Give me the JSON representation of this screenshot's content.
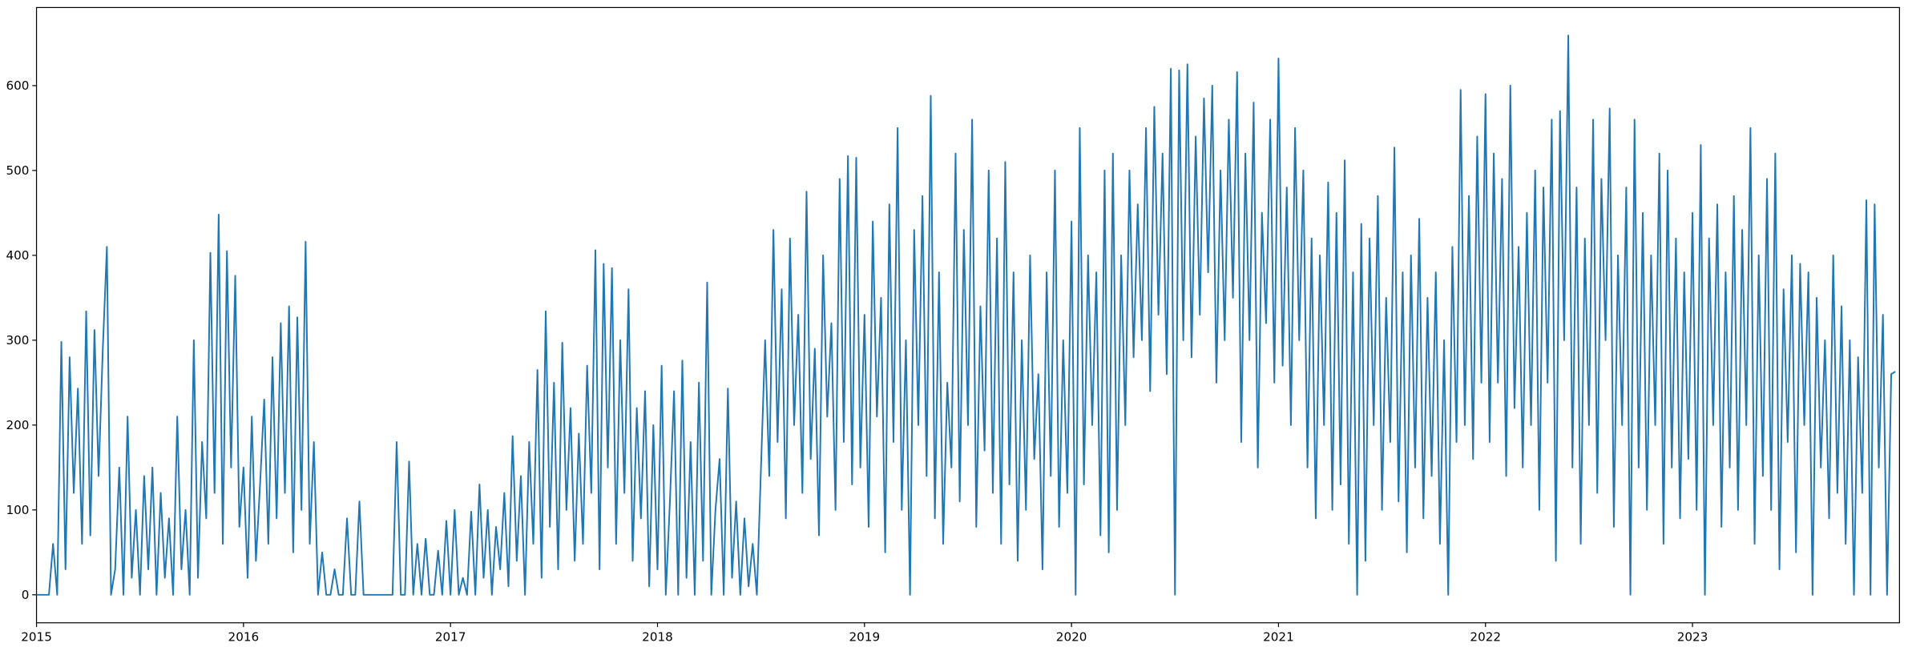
{
  "chart_data": {
    "type": "line",
    "color": "#1f77b4",
    "xlim": [
      2015,
      2024
    ],
    "xticks": [
      2015,
      2016,
      2017,
      2018,
      2019,
      2020,
      2021,
      2022,
      2023
    ],
    "ylim": [
      -33,
      692
    ],
    "yticks": [
      0,
      100,
      200,
      300,
      400,
      500,
      600
    ],
    "x": [
      2015.0,
      2015.02,
      2015.04,
      2015.06,
      2015.08,
      2015.1,
      2015.12,
      2015.14,
      2015.16,
      2015.18,
      2015.2,
      2015.22,
      2015.24,
      2015.26,
      2015.28,
      2015.3,
      2015.32,
      2015.34,
      2015.36,
      2015.38,
      2015.4,
      2015.42,
      2015.44,
      2015.46,
      2015.48,
      2015.5,
      2015.52,
      2015.54,
      2015.56,
      2015.58,
      2015.6,
      2015.62,
      2015.64,
      2015.66,
      2015.68,
      2015.7,
      2015.72,
      2015.74,
      2015.76,
      2015.78,
      2015.8,
      2015.82,
      2015.84,
      2015.86,
      2015.88,
      2015.9,
      2015.92,
      2015.94,
      2015.96,
      2015.98,
      2016.0,
      2016.02,
      2016.04,
      2016.06,
      2016.08,
      2016.1,
      2016.12,
      2016.14,
      2016.16,
      2016.18,
      2016.2,
      2016.22,
      2016.24,
      2016.26,
      2016.28,
      2016.3,
      2016.32,
      2016.34,
      2016.36,
      2016.38,
      2016.4,
      2016.42,
      2016.44,
      2016.46,
      2016.48,
      2016.5,
      2016.52,
      2016.54,
      2016.56,
      2016.58,
      2016.6,
      2016.62,
      2016.64,
      2016.66,
      2016.68,
      2016.7,
      2016.72,
      2016.74,
      2016.76,
      2016.78,
      2016.8,
      2016.82,
      2016.84,
      2016.86,
      2016.88,
      2016.9,
      2016.92,
      2016.94,
      2016.96,
      2016.98,
      2017.0,
      2017.02,
      2017.04,
      2017.06,
      2017.08,
      2017.1,
      2017.12,
      2017.14,
      2017.16,
      2017.18,
      2017.2,
      2017.22,
      2017.24,
      2017.26,
      2017.28,
      2017.3,
      2017.32,
      2017.34,
      2017.36,
      2017.38,
      2017.4,
      2017.42,
      2017.44,
      2017.46,
      2017.48,
      2017.5,
      2017.52,
      2017.54,
      2017.56,
      2017.58,
      2017.6,
      2017.62,
      2017.64,
      2017.66,
      2017.68,
      2017.7,
      2017.72,
      2017.74,
      2017.76,
      2017.78,
      2017.8,
      2017.82,
      2017.84,
      2017.86,
      2017.88,
      2017.9,
      2017.92,
      2017.94,
      2017.96,
      2017.98,
      2018.0,
      2018.02,
      2018.04,
      2018.06,
      2018.08,
      2018.1,
      2018.12,
      2018.14,
      2018.16,
      2018.18,
      2018.2,
      2018.22,
      2018.24,
      2018.26,
      2018.28,
      2018.3,
      2018.32,
      2018.34,
      2018.36,
      2018.38,
      2018.4,
      2018.42,
      2018.44,
      2018.46,
      2018.48,
      2018.5,
      2018.52,
      2018.54,
      2018.56,
      2018.58,
      2018.6,
      2018.62,
      2018.64,
      2018.66,
      2018.68,
      2018.7,
      2018.72,
      2018.74,
      2018.76,
      2018.78,
      2018.8,
      2018.82,
      2018.84,
      2018.86,
      2018.88,
      2018.9,
      2018.92,
      2018.94,
      2018.96,
      2018.98,
      2019.0,
      2019.02,
      2019.04,
      2019.06,
      2019.08,
      2019.1,
      2019.12,
      2019.14,
      2019.16,
      2019.18,
      2019.2,
      2019.22,
      2019.24,
      2019.26,
      2019.28,
      2019.3,
      2019.32,
      2019.34,
      2019.36,
      2019.38,
      2019.4,
      2019.42,
      2019.44,
      2019.46,
      2019.48,
      2019.5,
      2019.52,
      2019.54,
      2019.56,
      2019.58,
      2019.6,
      2019.62,
      2019.64,
      2019.66,
      2019.68,
      2019.7,
      2019.72,
      2019.74,
      2019.76,
      2019.78,
      2019.8,
      2019.82,
      2019.84,
      2019.86,
      2019.88,
      2019.9,
      2019.92,
      2019.94,
      2019.96,
      2019.98,
      2020.0,
      2020.02,
      2020.04,
      2020.06,
      2020.08,
      2020.1,
      2020.12,
      2020.14,
      2020.16,
      2020.18,
      2020.2,
      2020.22,
      2020.24,
      2020.26,
      2020.28,
      2020.3,
      2020.32,
      2020.34,
      2020.36,
      2020.38,
      2020.4,
      2020.42,
      2020.44,
      2020.46,
      2020.48,
      2020.5,
      2020.52,
      2020.54,
      2020.56,
      2020.58,
      2020.6,
      2020.62,
      2020.64,
      2020.66,
      2020.68,
      2020.7,
      2020.72,
      2020.74,
      2020.76,
      2020.78,
      2020.8,
      2020.82,
      2020.84,
      2020.86,
      2020.88,
      2020.9,
      2020.92,
      2020.94,
      2020.96,
      2020.98,
      2021.0,
      2021.02,
      2021.04,
      2021.06,
      2021.08,
      2021.1,
      2021.12,
      2021.14,
      2021.16,
      2021.18,
      2021.2,
      2021.22,
      2021.24,
      2021.26,
      2021.28,
      2021.3,
      2021.32,
      2021.34,
      2021.36,
      2021.38,
      2021.4,
      2021.42,
      2021.44,
      2021.46,
      2021.48,
      2021.5,
      2021.52,
      2021.54,
      2021.56,
      2021.58,
      2021.6,
      2021.62,
      2021.64,
      2021.66,
      2021.68,
      2021.7,
      2021.72,
      2021.74,
      2021.76,
      2021.78,
      2021.8,
      2021.82,
      2021.84,
      2021.86,
      2021.88,
      2021.9,
      2021.92,
      2021.94,
      2021.96,
      2021.98,
      2022.0,
      2022.02,
      2022.04,
      2022.06,
      2022.08,
      2022.1,
      2022.12,
      2022.14,
      2022.16,
      2022.18,
      2022.2,
      2022.22,
      2022.24,
      2022.26,
      2022.28,
      2022.3,
      2022.32,
      2022.34,
      2022.36,
      2022.38,
      2022.4,
      2022.42,
      2022.44,
      2022.46,
      2022.48,
      2022.5,
      2022.52,
      2022.54,
      2022.56,
      2022.58,
      2022.6,
      2022.62,
      2022.64,
      2022.66,
      2022.68,
      2022.7,
      2022.72,
      2022.74,
      2022.76,
      2022.78,
      2022.8,
      2022.82,
      2022.84,
      2022.86,
      2022.88,
      2022.9,
      2022.92,
      2022.94,
      2022.96,
      2022.98,
      2023.0,
      2023.02,
      2023.04,
      2023.06,
      2023.08,
      2023.1,
      2023.12,
      2023.14,
      2023.16,
      2023.18,
      2023.2,
      2023.22,
      2023.24,
      2023.26,
      2023.28,
      2023.3,
      2023.32,
      2023.34,
      2023.36,
      2023.38,
      2023.4,
      2023.42,
      2023.44,
      2023.46,
      2023.48,
      2023.5,
      2023.52,
      2023.54,
      2023.56,
      2023.58,
      2023.6,
      2023.62,
      2023.64,
      2023.66,
      2023.68,
      2023.7,
      2023.72,
      2023.74,
      2023.76,
      2023.78,
      2023.8,
      2023.82,
      2023.84,
      2023.86,
      2023.88,
      2023.9,
      2023.92,
      2023.94,
      2023.96,
      2023.98
    ],
    "values": [
      0,
      0,
      0,
      0,
      60,
      0,
      298,
      30,
      280,
      120,
      243,
      60,
      334,
      70,
      312,
      140,
      288,
      410,
      0,
      30,
      150,
      0,
      210,
      20,
      100,
      0,
      140,
      30,
      150,
      0,
      120,
      20,
      90,
      0,
      210,
      30,
      100,
      0,
      300,
      20,
      180,
      90,
      403,
      120,
      448,
      60,
      405,
      150,
      376,
      80,
      150,
      20,
      210,
      40,
      130,
      230,
      60,
      280,
      90,
      320,
      120,
      340,
      50,
      327,
      100,
      416,
      60,
      180,
      0,
      50,
      0,
      0,
      30,
      0,
      0,
      90,
      0,
      0,
      110,
      0,
      0,
      0,
      0,
      0,
      0,
      0,
      0,
      180,
      0,
      0,
      157,
      0,
      60,
      0,
      66,
      0,
      0,
      52,
      0,
      87,
      0,
      100,
      0,
      20,
      0,
      98,
      0,
      130,
      20,
      100,
      0,
      80,
      30,
      120,
      10,
      187,
      40,
      140,
      0,
      180,
      60,
      265,
      20,
      334,
      80,
      250,
      30,
      297,
      100,
      220,
      40,
      190,
      60,
      270,
      120,
      406,
      30,
      390,
      150,
      385,
      60,
      300,
      120,
      360,
      40,
      220,
      90,
      240,
      10,
      200,
      30,
      270,
      0,
      110,
      240,
      0,
      276,
      20,
      180,
      0,
      250,
      40,
      368,
      0,
      100,
      160,
      0,
      243,
      20,
      110,
      0,
      90,
      10,
      60,
      0,
      150,
      300,
      140,
      430,
      180,
      360,
      90,
      420,
      200,
      330,
      120,
      475,
      160,
      290,
      70,
      400,
      210,
      320,
      100,
      490,
      180,
      517,
      130,
      515,
      150,
      330,
      80,
      440,
      210,
      350,
      50,
      460,
      180,
      550,
      100,
      300,
      0,
      430,
      200,
      470,
      140,
      588,
      90,
      380,
      60,
      250,
      150,
      520,
      110,
      430,
      200,
      560,
      80,
      340,
      170,
      500,
      120,
      420,
      60,
      510,
      130,
      380,
      40,
      300,
      100,
      400,
      160,
      260,
      30,
      380,
      140,
      500,
      80,
      300,
      120,
      440,
      0,
      550,
      130,
      400,
      200,
      380,
      70,
      500,
      50,
      520,
      100,
      400,
      200,
      500,
      280,
      460,
      300,
      550,
      240,
      575,
      330,
      520,
      260,
      620,
      0,
      618,
      300,
      625,
      280,
      540,
      330,
      585,
      380,
      600,
      250,
      500,
      300,
      560,
      350,
      616,
      180,
      520,
      300,
      580,
      150,
      450,
      320,
      560,
      250,
      632,
      270,
      480,
      200,
      550,
      300,
      500,
      150,
      420,
      90,
      400,
      200,
      486,
      100,
      450,
      130,
      512,
      60,
      380,
      0,
      437,
      40,
      420,
      200,
      470,
      100,
      350,
      180,
      527,
      110,
      380,
      50,
      400,
      150,
      443,
      90,
      350,
      140,
      380,
      60,
      300,
      0,
      410,
      180,
      595,
      200,
      470,
      160,
      540,
      250,
      590,
      180,
      520,
      250,
      490,
      140,
      600,
      220,
      410,
      150,
      450,
      200,
      500,
      100,
      480,
      250,
      560,
      40,
      570,
      300,
      659,
      150,
      480,
      60,
      420,
      200,
      560,
      120,
      490,
      300,
      573,
      80,
      400,
      200,
      480,
      0,
      560,
      150,
      450,
      100,
      400,
      200,
      520,
      60,
      500,
      150,
      420,
      90,
      380,
      160,
      450,
      100,
      530,
      0,
      420,
      200,
      460,
      80,
      380,
      150,
      470,
      100,
      430,
      200,
      550,
      60,
      400,
      140,
      490,
      100,
      520,
      30,
      360,
      180,
      400,
      50,
      390,
      200,
      380,
      0,
      350,
      150,
      300,
      90,
      400,
      120,
      340,
      60,
      300,
      0,
      280,
      120,
      465,
      0,
      460,
      150,
      330,
      0,
      260,
      263
    ]
  }
}
